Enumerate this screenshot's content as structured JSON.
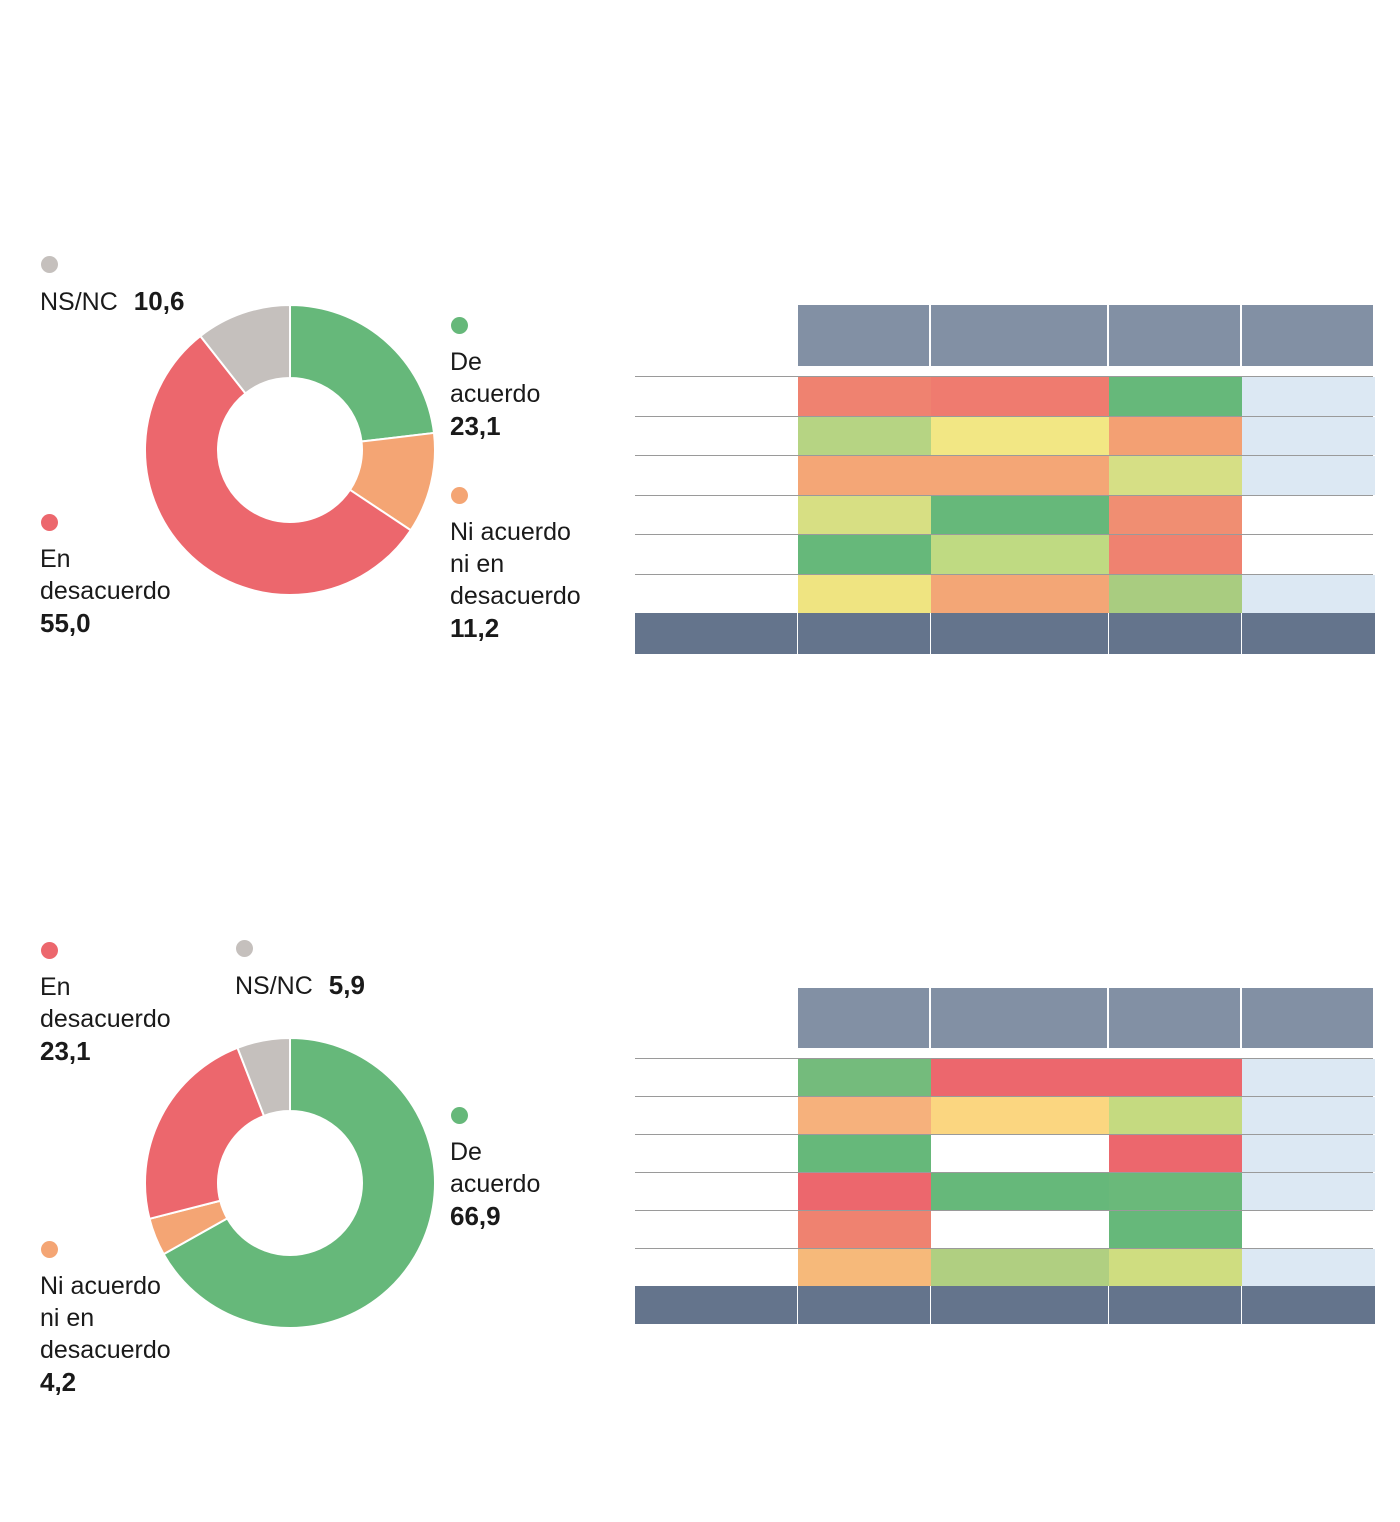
{
  "chart_data": [
    {
      "type": "pie",
      "variant": "donut",
      "unit": "%",
      "slices": [
        {
          "label": "De acuerdo",
          "value": 23.1,
          "display": "23,1",
          "color": "#66b87a"
        },
        {
          "label": "Ni acuerdo ni en desacuerdo",
          "value": 11.2,
          "display": "11,2",
          "color": "#f4a574"
        },
        {
          "label": "En desacuerdo",
          "value": 55.0,
          "display": "55,0",
          "color": "#ec676d"
        },
        {
          "label": "NS/NC",
          "value": 10.6,
          "display": "10,6",
          "color": "#c5c0bd"
        }
      ],
      "legend": [
        {
          "label": "NS/NC",
          "value": "10,6",
          "color": "#c5c0bd"
        },
        {
          "label": "De\nacuerdo",
          "value": "23,1",
          "color": "#66b87a"
        },
        {
          "label": "Ni acuerdo\nni en\ndesacuerdo",
          "value": "11,2",
          "color": "#f4a574"
        },
        {
          "label": "En\ndesacuerdo",
          "value": "55,0",
          "color": "#ec676d"
        }
      ],
      "heatmap": {
        "type": "heatmap",
        "header_color": "#8290a4",
        "footer_color": "#64748c",
        "rows": [
          [
            "#ef8270",
            "#ef7b6f",
            "#66b87a",
            "#dce8f3"
          ],
          [
            "#b6d483",
            "#f2e784",
            "#f3a073",
            "#dce8f3"
          ],
          [
            "#f4a676",
            "#f4a676",
            "#d6df85",
            "#dce8f3"
          ],
          [
            "#d7df83",
            "#66b87a",
            "#f08e72",
            "#ffffff"
          ],
          [
            "#66b87a",
            "#bfda82",
            "#ef8270",
            "#ffffff"
          ],
          [
            "#efe481",
            "#f3a676",
            "#a9cc80",
            "#dce8f3"
          ]
        ]
      }
    },
    {
      "type": "pie",
      "variant": "donut",
      "unit": "%",
      "slices": [
        {
          "label": "De acuerdo",
          "value": 66.9,
          "display": "66,9",
          "color": "#66b87a"
        },
        {
          "label": "Ni acuerdo ni en desacuerdo",
          "value": 4.2,
          "display": "4,2",
          "color": "#f4a574"
        },
        {
          "label": "En desacuerdo",
          "value": 23.1,
          "display": "23,1",
          "color": "#ec676d"
        },
        {
          "label": "NS/NC",
          "value": 5.9,
          "display": "5,9",
          "color": "#c5c0bd"
        }
      ],
      "legend": [
        {
          "label": "En\ndesacuerdo",
          "value": "23,1",
          "color": "#ec676d"
        },
        {
          "label": "NS/NC",
          "value": "5,9",
          "color": "#c5c0bd"
        },
        {
          "label": "De\nacuerdo",
          "value": "66,9",
          "color": "#66b87a"
        },
        {
          "label": "Ni acuerdo\nni en\ndesacuerdo",
          "value": "4,2",
          "color": "#f4a574"
        }
      ],
      "heatmap": {
        "type": "heatmap",
        "header_color": "#8290a4",
        "footer_color": "#64748c",
        "rows": [
          [
            "#74bb7c",
            "#ec676d",
            "#ec676d",
            "#dce8f3"
          ],
          [
            "#f6b17c",
            "#fbd680",
            "#c5da80",
            "#dce8f3"
          ],
          [
            "#66b87a",
            "#ffffff",
            "#ec676d",
            "#dce8f3"
          ],
          [
            "#ec676d",
            "#66b87a",
            "#6ab97a",
            "#dce8f3"
          ],
          [
            "#ef8270",
            "#ffffff",
            "#66b87a",
            "#ffffff"
          ],
          [
            "#f6b97a",
            "#b0cf81",
            "#cfdd80",
            "#dce8f3"
          ]
        ]
      }
    }
  ]
}
